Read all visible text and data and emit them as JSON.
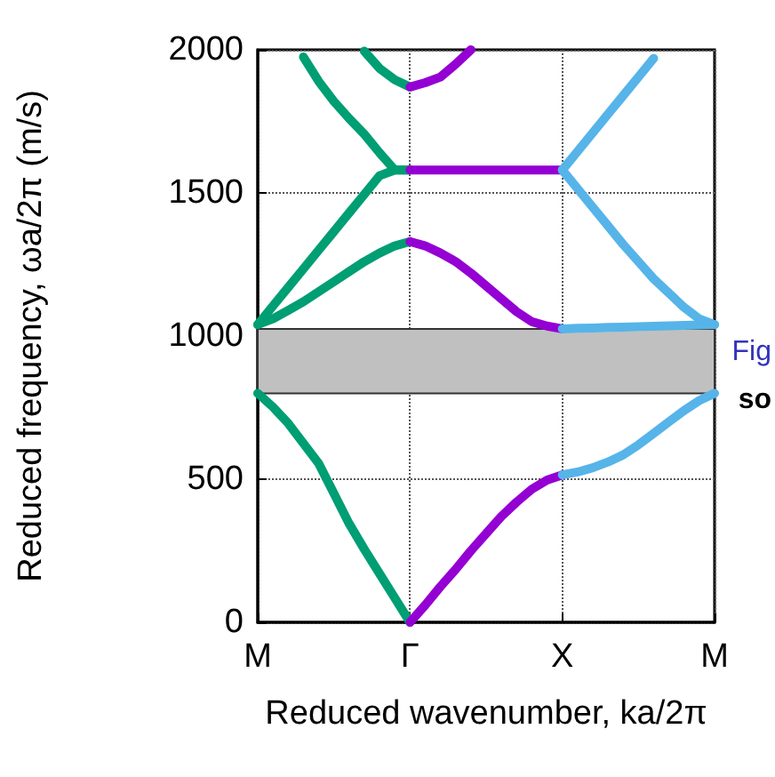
{
  "chart_data": {
    "type": "line",
    "xlabel": "Reduced wavenumber, ka/2π",
    "ylabel": "Reduced frequency, ωa/2π (m/s)",
    "categories": [
      "M",
      null,
      null,
      null,
      null,
      null,
      null,
      null,
      null,
      null,
      "Γ",
      null,
      null,
      null,
      null,
      null,
      null,
      null,
      null,
      null,
      "X",
      null,
      null,
      null,
      null,
      null,
      null,
      null,
      null,
      null,
      "M"
    ],
    "ylim": [
      0,
      2000
    ],
    "yticks": [
      0,
      500,
      1000,
      1500,
      2000
    ],
    "grid": true,
    "marker": "none",
    "line_style": "solid",
    "bands": [
      {
        "axis": "y",
        "from": 800,
        "to": 1025,
        "color": "#c0c0c0"
      }
    ],
    "annotations": [
      "Fig",
      "so"
    ],
    "series": [
      {
        "color": "#009e73",
        "values": [
          800,
          752,
          695,
          625,
          555,
          450,
          345,
          255,
          170,
          85,
          0,
          null,
          null,
          null,
          null,
          null,
          null,
          null,
          null,
          null,
          null,
          null,
          null,
          null,
          null,
          null,
          null,
          null,
          null,
          null,
          null
        ]
      },
      {
        "color": "#009e73",
        "values": [
          1040,
          1060,
          1090,
          1120,
          1155,
          1190,
          1225,
          1260,
          1290,
          1315,
          1330,
          null,
          null,
          null,
          null,
          null,
          null,
          null,
          null,
          null,
          null,
          null,
          null,
          null,
          null,
          null,
          null,
          null,
          null,
          null,
          null
        ]
      },
      {
        "color": "#009e73",
        "values": [
          1040,
          1105,
          1170,
          1235,
          1300,
          1365,
          1430,
          1495,
          1560,
          1580,
          1580,
          null,
          null,
          null,
          null,
          null,
          null,
          null,
          null,
          null,
          null,
          null,
          null,
          null,
          null,
          null,
          null,
          null,
          null,
          null,
          null
        ]
      },
      {
        "color": "#009e73",
        "values": [
          null,
          null,
          null,
          1975,
          1890,
          1820,
          1760,
          1705,
          1640,
          1580,
          1580,
          null,
          null,
          null,
          null,
          null,
          null,
          null,
          null,
          null,
          null,
          null,
          null,
          null,
          null,
          null,
          null,
          null,
          null,
          null,
          null
        ]
      },
      {
        "color": "#009e73",
        "values": [
          null,
          null,
          null,
          null,
          null,
          null,
          null,
          1995,
          1935,
          1895,
          1870,
          null,
          null,
          null,
          null,
          null,
          null,
          null,
          null,
          null,
          null,
          null,
          null,
          null,
          null,
          null,
          null,
          null,
          null,
          null,
          null
        ]
      },
      {
        "color": "#9400d3",
        "values": [
          null,
          null,
          null,
          null,
          null,
          null,
          null,
          null,
          null,
          null,
          0,
          60,
          125,
          185,
          250,
          310,
          370,
          420,
          465,
          497,
          515,
          null,
          null,
          null,
          null,
          null,
          null,
          null,
          null,
          null,
          null
        ]
      },
      {
        "color": "#9400d3",
        "values": [
          null,
          null,
          null,
          null,
          null,
          null,
          null,
          null,
          null,
          null,
          1330,
          1315,
          1290,
          1260,
          1220,
          1175,
          1130,
          1085,
          1050,
          1035,
          1025,
          null,
          null,
          null,
          null,
          null,
          null,
          null,
          null,
          null,
          null
        ]
      },
      {
        "color": "#9400d3",
        "values": [
          null,
          null,
          null,
          null,
          null,
          null,
          null,
          null,
          null,
          null,
          1580,
          1580,
          1580,
          1580,
          1580,
          1580,
          1580,
          1580,
          1580,
          1580,
          1580,
          null,
          null,
          null,
          null,
          null,
          null,
          null,
          null,
          null,
          null
        ]
      },
      {
        "color": "#9400d3",
        "values": [
          null,
          null,
          null,
          null,
          null,
          null,
          null,
          null,
          null,
          null,
          1870,
          1885,
          1905,
          1950,
          2000,
          null,
          null,
          null,
          null,
          null,
          null,
          null,
          null,
          null,
          null,
          null,
          null,
          null,
          null,
          null,
          null
        ]
      },
      {
        "color": "#56b4e9",
        "values": [
          null,
          null,
          null,
          null,
          null,
          null,
          null,
          null,
          null,
          null,
          null,
          null,
          null,
          null,
          null,
          null,
          null,
          null,
          null,
          null,
          515,
          525,
          540,
          560,
          585,
          620,
          660,
          700,
          740,
          775,
          800
        ]
      },
      {
        "color": "#56b4e9",
        "values": [
          null,
          null,
          null,
          null,
          null,
          null,
          null,
          null,
          null,
          null,
          null,
          null,
          null,
          null,
          null,
          null,
          null,
          null,
          null,
          null,
          1025,
          1027,
          1028,
          1030,
          1031,
          1033,
          1034,
          1036,
          1037,
          1039,
          1040
        ]
      },
      {
        "color": "#56b4e9",
        "values": [
          null,
          null,
          null,
          null,
          null,
          null,
          null,
          null,
          null,
          null,
          null,
          null,
          null,
          null,
          null,
          null,
          null,
          null,
          null,
          null,
          1580,
          1515,
          1450,
          1385,
          1320,
          1260,
          1200,
          1150,
          1100,
          1060,
          1040
        ]
      },
      {
        "color": "#56b4e9",
        "values": [
          null,
          null,
          null,
          null,
          null,
          null,
          null,
          null,
          null,
          null,
          null,
          null,
          null,
          null,
          null,
          null,
          null,
          null,
          null,
          null,
          1580,
          1645,
          1710,
          1775,
          1840,
          1905,
          1970,
          null,
          null,
          null,
          null
        ]
      }
    ]
  }
}
